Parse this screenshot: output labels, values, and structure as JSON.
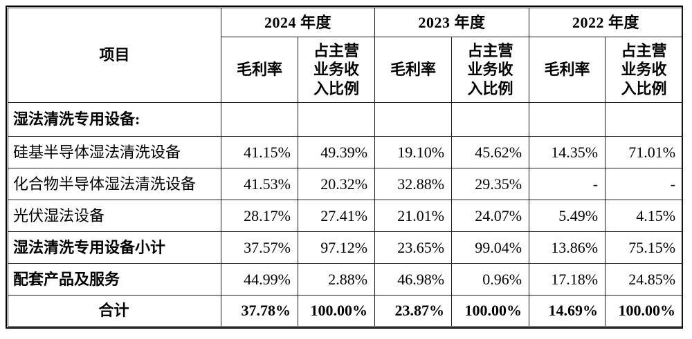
{
  "table": {
    "item_header": "项目",
    "year_groups": [
      {
        "label": "2024 年度"
      },
      {
        "label": "2023 年度"
      },
      {
        "label": "2022 年度"
      }
    ],
    "col_headers": {
      "gross_margin": "毛利率",
      "revenue_share": "占主营\n业务收\n入比例"
    },
    "rows": [
      {
        "label": "湿法清洗专用设备:",
        "style": "section",
        "cells": [
          "",
          "",
          "",
          "",
          "",
          ""
        ]
      },
      {
        "label": "硅基半导体湿法清洗设备",
        "style": "normal",
        "cells": [
          "41.15%",
          "49.39%",
          "19.10%",
          "45.62%",
          "14.35%",
          "71.01%"
        ]
      },
      {
        "label": "化合物半导体湿法清洗设备",
        "style": "normal",
        "cells": [
          "41.53%",
          "20.32%",
          "32.88%",
          "29.35%",
          "-",
          "-"
        ]
      },
      {
        "label": "光伏湿法设备",
        "style": "normal",
        "cells": [
          "28.17%",
          "27.41%",
          "21.01%",
          "24.07%",
          "5.49%",
          "4.15%"
        ]
      },
      {
        "label": "湿法清洗专用设备小计",
        "style": "subtotal",
        "cells": [
          "37.57%",
          "97.12%",
          "23.65%",
          "99.04%",
          "13.86%",
          "75.15%"
        ]
      },
      {
        "label": "配套产品及服务",
        "style": "subtotal",
        "cells": [
          "44.99%",
          "2.88%",
          "46.98%",
          "0.96%",
          "17.18%",
          "24.85%"
        ]
      },
      {
        "label": "合计",
        "style": "total",
        "cells": [
          "37.78%",
          "100.00%",
          "23.87%",
          "100.00%",
          "14.69%",
          "100.00%"
        ]
      }
    ]
  }
}
